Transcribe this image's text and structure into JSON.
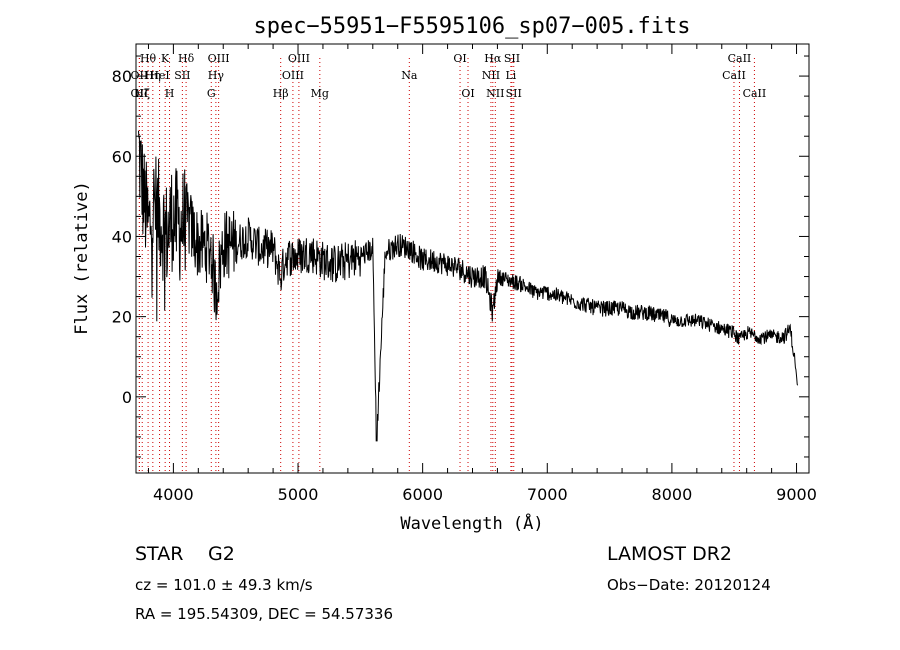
{
  "chart_data": {
    "type": "line",
    "title": "spec−55951−F5595106_sp07−005.fits",
    "xlabel": "Wavelength (Å)",
    "ylabel": "Flux (relative)",
    "xlim": [
      3700,
      9100
    ],
    "ylim": [
      -19,
      88
    ],
    "xticks": [
      4000,
      5000,
      6000,
      7000,
      8000,
      9000
    ],
    "yticks": [
      0,
      20,
      40,
      60,
      80
    ],
    "grid": false,
    "line_color": "#000000",
    "marker_color": "#cc0000",
    "spectrum_anchor_points": {
      "x": [
        3720,
        3760,
        3800,
        3850,
        3900,
        3950,
        3990,
        4050,
        4100,
        4200,
        4300,
        4340,
        4400,
        4500,
        4600,
        4700,
        4800,
        4861,
        4900,
        5000,
        5100,
        5200,
        5300,
        5400,
        5500,
        5600,
        5630,
        5700,
        5800,
        5900,
        6000,
        6100,
        6200,
        6300,
        6400,
        6500,
        6563,
        6600,
        6700,
        6800,
        6900,
        7000,
        7100,
        7200,
        7300,
        7400,
        7500,
        7600,
        7700,
        7800,
        7900,
        7950,
        8000,
        8100,
        8200,
        8300,
        8400,
        8500,
        8542,
        8600,
        8700,
        8800,
        8900,
        8950,
        8990,
        9010
      ],
      "y": [
        62,
        50,
        42,
        48,
        44,
        40,
        45,
        42,
        45,
        38,
        37,
        26,
        38,
        38,
        40,
        37,
        37,
        30,
        35,
        35,
        36,
        34,
        33,
        34,
        35,
        37,
        -11,
        36,
        38,
        37,
        34,
        34,
        33,
        32,
        30,
        30,
        21,
        30,
        29,
        28,
        26,
        26,
        25,
        24,
        23,
        22,
        22,
        22,
        21,
        21,
        20,
        20,
        19,
        19,
        19,
        18,
        17,
        16,
        14,
        16,
        15,
        15,
        15,
        17,
        8,
        2
      ]
    },
    "line_markers": [
      {
        "label": "Hθ",
        "x": 3797,
        "row": 1
      },
      {
        "label": "K",
        "x": 3934,
        "row": 1
      },
      {
        "label": "Hδ",
        "x": 4102,
        "row": 1
      },
      {
        "label": "OII",
        "x": 3727,
        "row": 2
      },
      {
        "label": "Hη",
        "x": 3835,
        "row": 2
      },
      {
        "label": "HeI",
        "x": 3889,
        "row": 2
      },
      {
        "label": "SII",
        "x": 4072,
        "row": 2
      },
      {
        "label": "OII",
        "x": 3727,
        "row": 3
      },
      {
        "label": "Hζ",
        "x": 3750,
        "row": 3
      },
      {
        "label": "H",
        "x": 3969,
        "row": 3
      },
      {
        "label": "OIII",
        "x": 4363,
        "row": 1
      },
      {
        "label": "Hγ",
        "x": 4341,
        "row": 2
      },
      {
        "label": "G",
        "x": 4304,
        "row": 3
      },
      {
        "label": "OIII",
        "x": 5007,
        "row": 1
      },
      {
        "label": "OIII",
        "x": 4959,
        "row": 2
      },
      {
        "label": "Hβ",
        "x": 4861,
        "row": 3
      },
      {
        "label": "Mg",
        "x": 5175,
        "row": 3
      },
      {
        "label": "Na",
        "x": 5893,
        "row": 2
      },
      {
        "label": "OI",
        "x": 6300,
        "row": 1
      },
      {
        "label": "OI",
        "x": 6364,
        "row": 3
      },
      {
        "label": "Hα",
        "x": 6563,
        "row": 1
      },
      {
        "label": "SII",
        "x": 6717,
        "row": 1
      },
      {
        "label": "NII",
        "x": 6548,
        "row": 2
      },
      {
        "label": "Li",
        "x": 6708,
        "row": 2
      },
      {
        "label": "NII",
        "x": 6583,
        "row": 3
      },
      {
        "label": "SII",
        "x": 6731,
        "row": 3
      },
      {
        "label": "CaII",
        "x": 8542,
        "row": 1
      },
      {
        "label": "CaII",
        "x": 8498,
        "row": 2
      },
      {
        "label": "CaII",
        "x": 8662,
        "row": 3
      }
    ]
  },
  "footer": {
    "object_class": "STAR",
    "subclass": "G2",
    "survey": "LAMOST DR2",
    "redshift": "cz = 101.0 ± 49.3 km/s",
    "obs_date": "Obs−Date: 20120124",
    "coordinates": "RA = 195.54309, DEC =  54.57336"
  }
}
